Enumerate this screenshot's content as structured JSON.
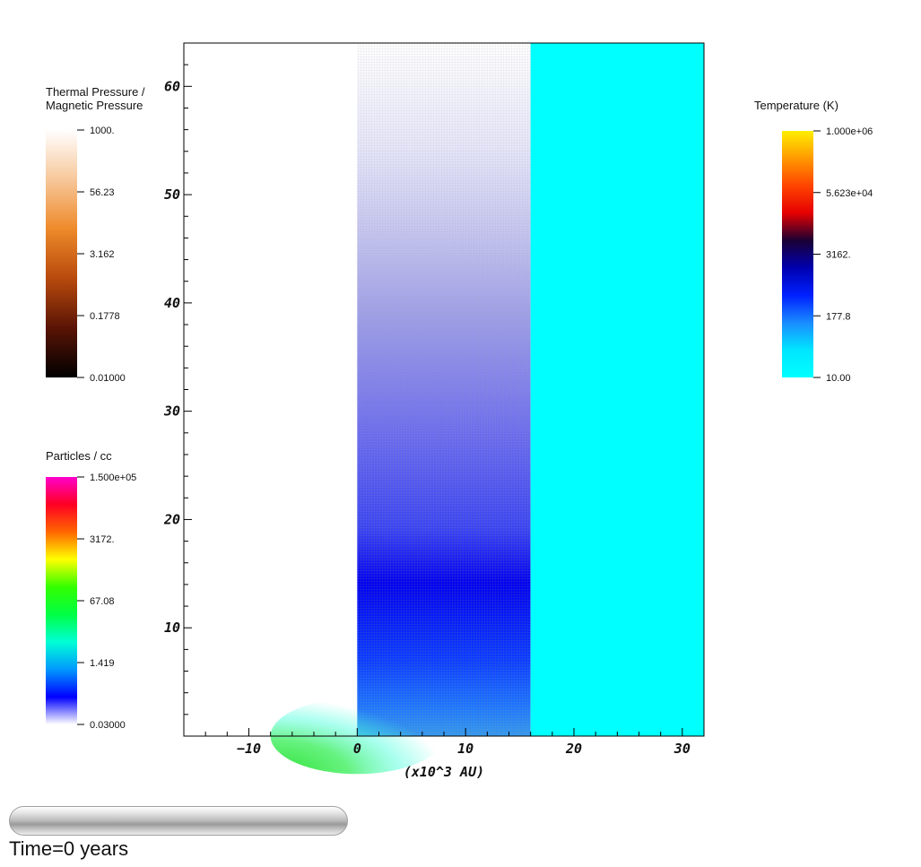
{
  "chart_data": {
    "type": "heatmap",
    "xlabel": "(x10^3 AU)",
    "xlim": [
      -16,
      32
    ],
    "ylim": [
      0,
      64
    ],
    "x_ticks": [
      -10,
      0,
      10,
      20,
      30
    ],
    "y_ticks": [
      10,
      20,
      30,
      40,
      50,
      60
    ],
    "regions": [
      {
        "x_range": [
          0,
          16
        ],
        "y_range": [
          0,
          64
        ],
        "field": "Particles / cc",
        "description_values": [
          {
            "y": 0,
            "value": 67.08
          },
          {
            "y": 15,
            "value": 1.419
          },
          {
            "y": 40,
            "value": 0.3
          },
          {
            "y": 64,
            "value": 0.03
          }
        ]
      },
      {
        "x_range": [
          16,
          32
        ],
        "y_range": [
          0,
          64
        ],
        "field": "Temperature (K)",
        "value": 10.0
      }
    ],
    "colorbars": [
      {
        "title": "Thermal Pressure /\nMagnetic Pressure",
        "title_lines": [
          "Thermal Pressure /",
          "Magnetic Pressure"
        ],
        "ticks": [
          "1000.",
          "56.23",
          "3.162",
          "0.1778",
          "0.01000"
        ],
        "range": [
          0.01,
          1000
        ],
        "scale": "log",
        "colors": [
          "#ffffff",
          "#f7c79a",
          "#ee8a2a",
          "#b84a0d",
          "#5a1405",
          "#000000"
        ]
      },
      {
        "title": "Temperature (K)",
        "title_lines": [
          "Temperature (K)"
        ],
        "ticks": [
          "1.000e+06",
          "5.623e+04",
          "3162.",
          "177.8",
          "10.00"
        ],
        "range": [
          10,
          1000000
        ],
        "scale": "log",
        "colors": [
          "#ffee00",
          "#ff9900",
          "#ff4400",
          "#e60000",
          "#1a0033",
          "#0000b0",
          "#0020ff",
          "#1a8cff",
          "#00e6ff",
          "#00ffff"
        ]
      },
      {
        "title": "Particles / cc",
        "title_lines": [
          "Particles / cc"
        ],
        "ticks": [
          "1.500e+05",
          "3172.",
          "67.08",
          "1.419",
          "0.03000"
        ],
        "range": [
          0.03,
          150000
        ],
        "scale": "log",
        "colors": [
          "#ff00cc",
          "#ff0022",
          "#ff6600",
          "#ffff00",
          "#33ff00",
          "#00ff44",
          "#00ffd5",
          "#0099ff",
          "#0000ff",
          "#ffffff"
        ]
      }
    ]
  },
  "status": {
    "time_label": "Time=0 years",
    "progress": 0
  }
}
